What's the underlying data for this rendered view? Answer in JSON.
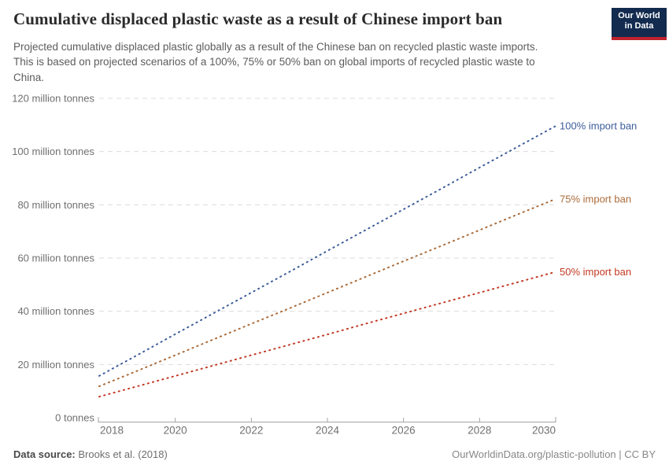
{
  "header": {
    "title": "Cumulative displaced plastic waste as a result of Chinese import ban",
    "subtitle_line1": "Projected cumulative displaced plastic globally as a result of the Chinese ban on recycled plastic waste imports.",
    "subtitle_line2": "This is based on projected scenarios of a 100%, 75% or 50% ban on global imports of recycled plastic waste to",
    "subtitle_line3": "China."
  },
  "logo": {
    "line1": "Our World",
    "line2": "in Data",
    "bg_color": "#122b4f",
    "bar_color": "#c0232d"
  },
  "footer": {
    "source_label": "Data source:",
    "source_value": "Brooks et al. (2018)",
    "credit": "OurWorldinData.org/plastic-pollution | CC BY"
  },
  "chart_data": {
    "type": "line",
    "title": "Cumulative displaced plastic waste as a result of Chinese import ban",
    "line_style": "dotted",
    "grid": "dashed-horizontal",
    "legend_position": "end-of-line-labels",
    "x": [
      2018,
      2019,
      2020,
      2021,
      2022,
      2023,
      2024,
      2025,
      2026,
      2027,
      2028,
      2029,
      2030
    ],
    "xlim": [
      2018,
      2030
    ],
    "ylim": [
      0,
      120
    ],
    "ylabel_unit": "million tonnes",
    "xticks": [
      2018,
      2020,
      2022,
      2024,
      2026,
      2028,
      2030
    ],
    "yticks": [
      {
        "v": 0,
        "label": "0 tonnes"
      },
      {
        "v": 20,
        "label": "20 million tonnes"
      },
      {
        "v": 40,
        "label": "40 million tonnes"
      },
      {
        "v": 60,
        "label": "60 million tonnes"
      },
      {
        "v": 80,
        "label": "80 million tonnes"
      },
      {
        "v": 100,
        "label": "100 million tonnes"
      },
      {
        "v": 120,
        "label": "120 million tonnes"
      }
    ],
    "series": [
      {
        "name": "100% import ban",
        "color": "#3d5c99",
        "values": [
          15.7,
          23.5,
          31.4,
          39.2,
          47.0,
          54.8,
          62.7,
          70.5,
          78.3,
          86.1,
          94.0,
          101.8,
          109.6
        ]
      },
      {
        "name": "75% import ban",
        "color": "#aa6b3a",
        "values": [
          11.8,
          17.6,
          23.5,
          29.4,
          35.3,
          41.1,
          47.0,
          52.9,
          58.8,
          64.6,
          70.5,
          76.4,
          82.2
        ]
      },
      {
        "name": "50% import ban",
        "color": "#c23a24",
        "values": [
          7.9,
          11.8,
          15.7,
          19.6,
          23.5,
          27.4,
          31.3,
          35.3,
          39.2,
          43.1,
          47.0,
          50.9,
          54.8
        ]
      }
    ],
    "colors": {
      "grid": "#dcdcdc",
      "axis": "#a3a3a3",
      "tick_text": "#707070"
    }
  }
}
